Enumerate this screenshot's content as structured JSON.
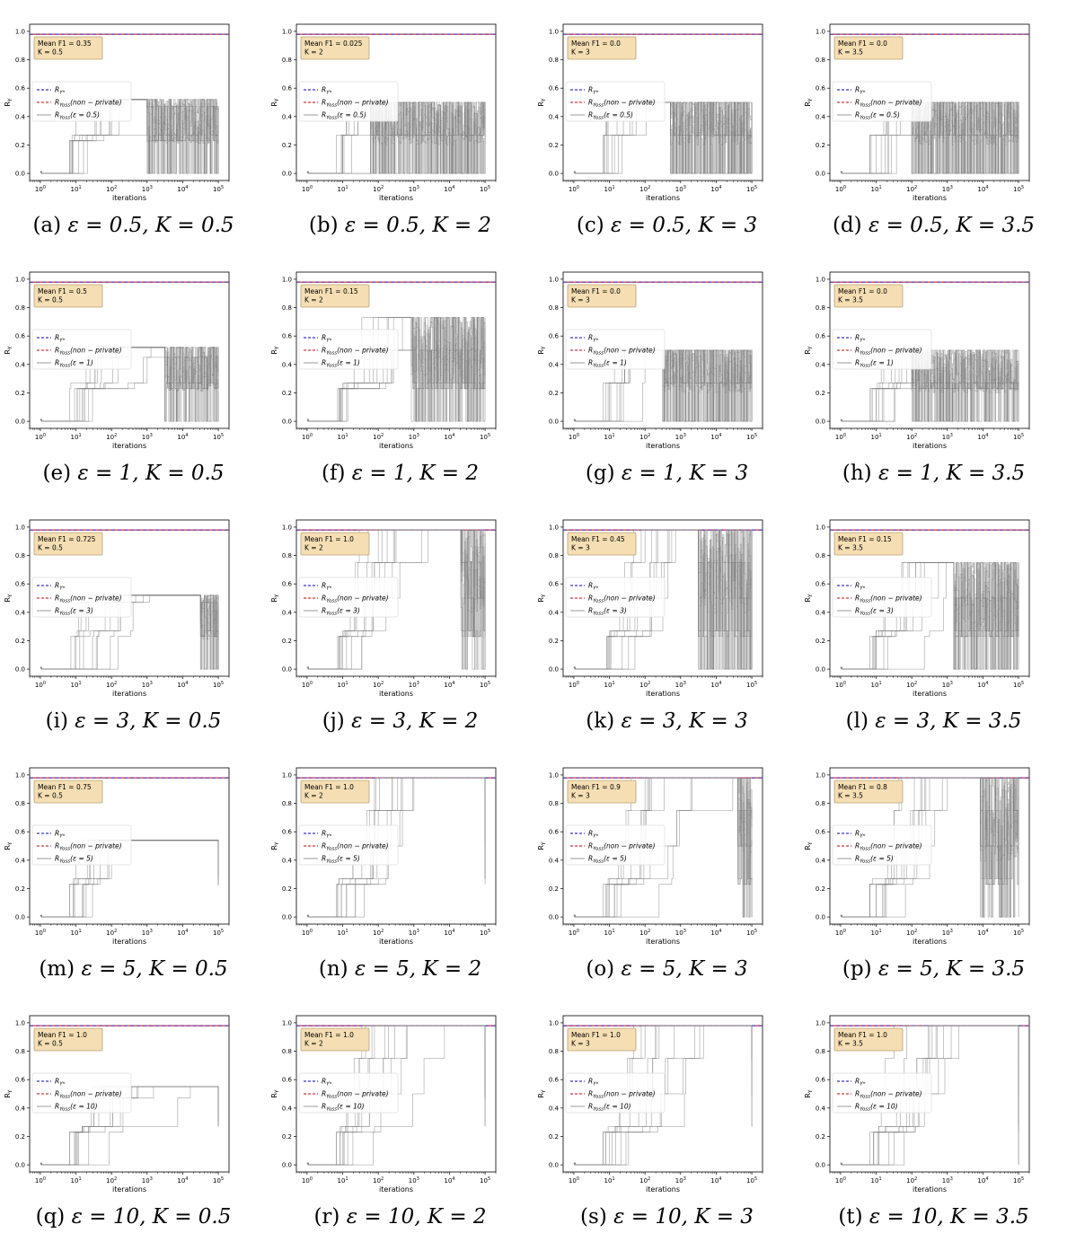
{
  "legend_labels": {
    "ystar": "R_{Y*}",
    "nonprivate": "R_{Yoss}(non − private)",
    "private_prefix": "R_{Yoss}(ε = ",
    "private_suffix": ")"
  },
  "colors": {
    "ystar": "#0000cc",
    "nonprivate": "#cc0000",
    "traces": "#808080",
    "annotation_fill": "#f5deb3",
    "annotation_edge": "#b8a276"
  },
  "chart_data": [
    {
      "letter": "a",
      "epsilon": "0.5",
      "K": "0.5",
      "mean_f1": "0.35",
      "annotation": [
        "Mean F1  = 0.35",
        "K = 0.5"
      ],
      "type": "line",
      "xlabel": "iterations",
      "ylabel": "R_Y",
      "xscale": "log",
      "xlim": [
        0.5,
        200000
      ],
      "ylim": [
        -0.05,
        1.05
      ],
      "yticks": [
        "0.0",
        "0.2",
        "0.4",
        "0.6",
        "0.8",
        "1.0"
      ],
      "xticks": [
        "10^0",
        "10^1",
        "10^2",
        "10^3",
        "10^4",
        "10^5"
      ],
      "reference_level": 0.98,
      "trace_levels": [
        0,
        0.23,
        0.27,
        0.47,
        0.52
      ],
      "noise_start": 1000,
      "trace_end": 100000
    },
    {
      "letter": "b",
      "epsilon": "0.5",
      "K": "2",
      "mean_f1": "0.025",
      "annotation": [
        "Mean F1  = 0.025",
        "K = 2"
      ],
      "type": "line",
      "xlabel": "iterations",
      "ylabel": "R_Y",
      "xscale": "log",
      "xlim": [
        0.5,
        200000
      ],
      "ylim": [
        -0.05,
        1.05
      ],
      "yticks": [
        "0.0",
        "0.2",
        "0.4",
        "0.6",
        "0.8",
        "1.0"
      ],
      "xticks": [
        "10^0",
        "10^1",
        "10^2",
        "10^3",
        "10^4",
        "10^5"
      ],
      "reference_level": 0.98,
      "trace_levels": [
        0,
        0.27,
        0.5
      ],
      "noise_start": 60,
      "trace_end": 100000
    },
    {
      "letter": "c",
      "epsilon": "0.5",
      "K": "3",
      "mean_f1": "0.0",
      "annotation": [
        "Mean F1  = 0.0",
        "K = 3"
      ],
      "type": "line",
      "xlabel": "iterations",
      "ylabel": "R_Y",
      "xscale": "log",
      "xlim": [
        0.5,
        200000
      ],
      "ylim": [
        -0.05,
        1.05
      ],
      "yticks": [
        "0.0",
        "0.2",
        "0.4",
        "0.6",
        "0.8",
        "1.0"
      ],
      "xticks": [
        "10^0",
        "10^1",
        "10^2",
        "10^3",
        "10^4",
        "10^5"
      ],
      "reference_level": 0.98,
      "trace_levels": [
        0,
        0.27,
        0.5
      ],
      "noise_start": 500,
      "trace_end": 100000
    },
    {
      "letter": "d",
      "epsilon": "0.5",
      "K": "3.5",
      "mean_f1": "0.0",
      "annotation": [
        "Mean F1  = 0.0",
        "K = 3.5"
      ],
      "type": "line",
      "xlabel": "iterations",
      "ylabel": "R_Y",
      "xscale": "log",
      "xlim": [
        0.5,
        200000
      ],
      "ylim": [
        -0.05,
        1.05
      ],
      "yticks": [
        "0.0",
        "0.2",
        "0.4",
        "0.6",
        "0.8",
        "1.0"
      ],
      "xticks": [
        "10^0",
        "10^1",
        "10^2",
        "10^3",
        "10^4",
        "10^5"
      ],
      "reference_level": 0.98,
      "trace_levels": [
        0,
        0.27,
        0.5
      ],
      "noise_start": 100,
      "trace_end": 100000
    },
    {
      "letter": "e",
      "epsilon": "1",
      "K": "0.5",
      "mean_f1": "0.5",
      "annotation": [
        "Mean F1  = 0.5",
        "K = 0.5"
      ],
      "type": "line",
      "xlabel": "iterations",
      "ylabel": "R_Y",
      "xscale": "log",
      "xlim": [
        0.5,
        200000
      ],
      "ylim": [
        -0.05,
        1.05
      ],
      "yticks": [
        "0.0",
        "0.2",
        "0.4",
        "0.6",
        "0.8",
        "1.0"
      ],
      "xticks": [
        "10^0",
        "10^1",
        "10^2",
        "10^3",
        "10^4",
        "10^5"
      ],
      "reference_level": 0.98,
      "trace_levels": [
        0,
        0.23,
        0.27,
        0.45,
        0.52
      ],
      "noise_start": 3000,
      "trace_end": 100000
    },
    {
      "letter": "f",
      "epsilon": "1",
      "K": "2",
      "mean_f1": "0.15",
      "annotation": [
        "Mean F1  = 0.15",
        "K = 2"
      ],
      "type": "line",
      "xlabel": "iterations",
      "ylabel": "R_Y",
      "xscale": "log",
      "xlim": [
        0.5,
        200000
      ],
      "ylim": [
        -0.05,
        1.05
      ],
      "yticks": [
        "0.0",
        "0.2",
        "0.4",
        "0.6",
        "0.8",
        "1.0"
      ],
      "xticks": [
        "10^0",
        "10^1",
        "10^2",
        "10^3",
        "10^4",
        "10^5"
      ],
      "reference_level": 0.98,
      "trace_levels": [
        0,
        0.23,
        0.27,
        0.5,
        0.73
      ],
      "noise_start": 800,
      "trace_end": 100000
    },
    {
      "letter": "g",
      "epsilon": "1",
      "K": "3",
      "mean_f1": "0.0",
      "annotation": [
        "Mean F1  = 0.0",
        "K = 3"
      ],
      "type": "line",
      "xlabel": "iterations",
      "ylabel": "R_Y",
      "xscale": "log",
      "xlim": [
        0.5,
        200000
      ],
      "ylim": [
        -0.05,
        1.05
      ],
      "yticks": [
        "0.0",
        "0.2",
        "0.4",
        "0.6",
        "0.8",
        "1.0"
      ],
      "xticks": [
        "10^0",
        "10^1",
        "10^2",
        "10^3",
        "10^4",
        "10^5"
      ],
      "reference_level": 0.98,
      "trace_levels": [
        0,
        0.27,
        0.5
      ],
      "noise_start": 300,
      "trace_end": 100000
    },
    {
      "letter": "h",
      "epsilon": "1",
      "K": "3.5",
      "mean_f1": "0.0",
      "annotation": [
        "Mean F1  = 0.0",
        "K = 3.5"
      ],
      "type": "line",
      "xlabel": "iterations",
      "ylabel": "R_Y",
      "xscale": "log",
      "xlim": [
        0.5,
        200000
      ],
      "ylim": [
        -0.05,
        1.05
      ],
      "yticks": [
        "0.0",
        "0.2",
        "0.4",
        "0.6",
        "0.8",
        "1.0"
      ],
      "xticks": [
        "10^0",
        "10^1",
        "10^2",
        "10^3",
        "10^4",
        "10^5"
      ],
      "reference_level": 0.98,
      "trace_levels": [
        0,
        0.23,
        0.27,
        0.5
      ],
      "noise_start": 100,
      "trace_end": 100000
    },
    {
      "letter": "i",
      "epsilon": "3",
      "K": "0.5",
      "mean_f1": "0.725",
      "annotation": [
        "Mean F1  = 0.725",
        "K = 0.5"
      ],
      "type": "line",
      "xlabel": "iterations",
      "ylabel": "R_Y",
      "xscale": "log",
      "xlim": [
        0.5,
        200000
      ],
      "ylim": [
        -0.05,
        1.05
      ],
      "yticks": [
        "0.0",
        "0.2",
        "0.4",
        "0.6",
        "0.8",
        "1.0"
      ],
      "xticks": [
        "10^0",
        "10^1",
        "10^2",
        "10^3",
        "10^4",
        "10^5"
      ],
      "reference_level": 0.98,
      "trace_levels": [
        0,
        0.23,
        0.27,
        0.47,
        0.52
      ],
      "noise_start": 30000,
      "trace_end": 100000
    },
    {
      "letter": "j",
      "epsilon": "3",
      "K": "2",
      "mean_f1": "1.0",
      "annotation": [
        "Mean F1  = 1.0",
        "K = 2"
      ],
      "type": "line",
      "xlabel": "iterations",
      "ylabel": "R_Y",
      "xscale": "log",
      "xlim": [
        0.5,
        200000
      ],
      "ylim": [
        -0.05,
        1.05
      ],
      "yticks": [
        "0.0",
        "0.2",
        "0.4",
        "0.6",
        "0.8",
        "1.0"
      ],
      "xticks": [
        "10^0",
        "10^1",
        "10^2",
        "10^3",
        "10^4",
        "10^5"
      ],
      "reference_level": 0.98,
      "trace_levels": [
        0,
        0.23,
        0.27,
        0.5,
        0.75,
        0.98
      ],
      "noise_start": 20000,
      "trace_end": 100000
    },
    {
      "letter": "k",
      "epsilon": "3",
      "K": "3",
      "mean_f1": "0.45",
      "annotation": [
        "Mean F1  = 0.45",
        "K = 3"
      ],
      "type": "line",
      "xlabel": "iterations",
      "ylabel": "R_Y",
      "xscale": "log",
      "xlim": [
        0.5,
        200000
      ],
      "ylim": [
        -0.05,
        1.05
      ],
      "yticks": [
        "0.0",
        "0.2",
        "0.4",
        "0.6",
        "0.8",
        "1.0"
      ],
      "xticks": [
        "10^0",
        "10^1",
        "10^2",
        "10^3",
        "10^4",
        "10^5"
      ],
      "reference_level": 0.98,
      "trace_levels": [
        0,
        0.23,
        0.27,
        0.5,
        0.75,
        0.98
      ],
      "noise_start": 3000,
      "trace_end": 100000
    },
    {
      "letter": "l",
      "epsilon": "3",
      "K": "3.5",
      "mean_f1": "0.15",
      "annotation": [
        "Mean F1  = 0.15",
        "K = 3.5"
      ],
      "type": "line",
      "xlabel": "iterations",
      "ylabel": "R_Y",
      "xscale": "log",
      "xlim": [
        0.5,
        200000
      ],
      "ylim": [
        -0.05,
        1.05
      ],
      "yticks": [
        "0.0",
        "0.2",
        "0.4",
        "0.6",
        "0.8",
        "1.0"
      ],
      "xticks": [
        "10^0",
        "10^1",
        "10^2",
        "10^3",
        "10^4",
        "10^5"
      ],
      "reference_level": 0.98,
      "trace_levels": [
        0,
        0.23,
        0.27,
        0.5,
        0.75
      ],
      "noise_start": 1500,
      "trace_end": 100000
    },
    {
      "letter": "m",
      "epsilon": "5",
      "K": "0.5",
      "mean_f1": "0.75",
      "annotation": [
        "Mean F1  = 0.75",
        "K = 0.5"
      ],
      "type": "line",
      "xlabel": "iterations",
      "ylabel": "R_Y",
      "xscale": "log",
      "xlim": [
        0.5,
        200000
      ],
      "ylim": [
        -0.05,
        1.05
      ],
      "yticks": [
        "0.0",
        "0.2",
        "0.4",
        "0.6",
        "0.8",
        "1.0"
      ],
      "xticks": [
        "10^0",
        "10^1",
        "10^2",
        "10^3",
        "10^4",
        "10^5"
      ],
      "reference_level": 0.98,
      "trace_levels": [
        0,
        0.23,
        0.27,
        0.47,
        0.54
      ],
      "noise_start": 100000,
      "trace_end": 100000
    },
    {
      "letter": "n",
      "epsilon": "5",
      "K": "2",
      "mean_f1": "1.0",
      "annotation": [
        "Mean F1  = 1.0",
        "K = 2"
      ],
      "type": "line",
      "xlabel": "iterations",
      "ylabel": "R_Y",
      "xscale": "log",
      "xlim": [
        0.5,
        200000
      ],
      "ylim": [
        -0.05,
        1.05
      ],
      "yticks": [
        "0.0",
        "0.2",
        "0.4",
        "0.6",
        "0.8",
        "1.0"
      ],
      "xticks": [
        "10^0",
        "10^1",
        "10^2",
        "10^3",
        "10^4",
        "10^5"
      ],
      "reference_level": 0.98,
      "trace_levels": [
        0,
        0.23,
        0.27,
        0.5,
        0.75,
        0.98
      ],
      "noise_start": 100000,
      "trace_end": 100000
    },
    {
      "letter": "o",
      "epsilon": "5",
      "K": "3",
      "mean_f1": "0.9",
      "annotation": [
        "Mean F1  = 0.9",
        "K = 3"
      ],
      "type": "line",
      "xlabel": "iterations",
      "ylabel": "R_Y",
      "xscale": "log",
      "xlim": [
        0.5,
        200000
      ],
      "ylim": [
        -0.05,
        1.05
      ],
      "yticks": [
        "0.0",
        "0.2",
        "0.4",
        "0.6",
        "0.8",
        "1.0"
      ],
      "xticks": [
        "10^0",
        "10^1",
        "10^2",
        "10^3",
        "10^4",
        "10^5"
      ],
      "reference_level": 0.98,
      "trace_levels": [
        0,
        0.23,
        0.27,
        0.5,
        0.75,
        0.98
      ],
      "noise_start": 40000,
      "trace_end": 100000
    },
    {
      "letter": "p",
      "epsilon": "5",
      "K": "3.5",
      "mean_f1": "0.8",
      "annotation": [
        "Mean F1  = 0.8",
        "K = 3.5"
      ],
      "type": "line",
      "xlabel": "iterations",
      "ylabel": "R_Y",
      "xscale": "log",
      "xlim": [
        0.5,
        200000
      ],
      "ylim": [
        -0.05,
        1.05
      ],
      "yticks": [
        "0.0",
        "0.2",
        "0.4",
        "0.6",
        "0.8",
        "1.0"
      ],
      "xticks": [
        "10^0",
        "10^1",
        "10^2",
        "10^3",
        "10^4",
        "10^5"
      ],
      "reference_level": 0.98,
      "trace_levels": [
        0,
        0.23,
        0.27,
        0.5,
        0.75,
        0.98
      ],
      "noise_start": 8000,
      "trace_end": 100000
    },
    {
      "letter": "q",
      "epsilon": "10",
      "K": "0.5",
      "mean_f1": "1.0",
      "annotation": [
        "Mean F1  = 1.0",
        "K = 0.5"
      ],
      "type": "line",
      "xlabel": "iterations",
      "ylabel": "R_Y",
      "xscale": "log",
      "xlim": [
        0.5,
        200000
      ],
      "ylim": [
        -0.05,
        1.05
      ],
      "yticks": [
        "0.0",
        "0.2",
        "0.4",
        "0.6",
        "0.8",
        "1.0"
      ],
      "xticks": [
        "10^0",
        "10^1",
        "10^2",
        "10^3",
        "10^4",
        "10^5"
      ],
      "reference_level": 0.98,
      "trace_levels": [
        0,
        0.23,
        0.27,
        0.47,
        0.55
      ],
      "noise_start": 100000,
      "trace_end": 100000
    },
    {
      "letter": "r",
      "epsilon": "10",
      "K": "2",
      "mean_f1": "1.0",
      "annotation": [
        "Mean F1  = 1.0",
        "K = 2"
      ],
      "type": "line",
      "xlabel": "iterations",
      "ylabel": "R_Y",
      "xscale": "log",
      "xlim": [
        0.5,
        200000
      ],
      "ylim": [
        -0.05,
        1.05
      ],
      "yticks": [
        "0.0",
        "0.2",
        "0.4",
        "0.6",
        "0.8",
        "1.0"
      ],
      "xticks": [
        "10^0",
        "10^1",
        "10^2",
        "10^3",
        "10^4",
        "10^5"
      ],
      "reference_level": 0.98,
      "trace_levels": [
        0,
        0.23,
        0.27,
        0.5,
        0.75,
        0.98
      ],
      "noise_start": 100000,
      "trace_end": 100000
    },
    {
      "letter": "s",
      "epsilon": "10",
      "K": "3",
      "mean_f1": "1.0",
      "annotation": [
        "Mean F1  = 1.0",
        "K = 3"
      ],
      "type": "line",
      "xlabel": "iterations",
      "ylabel": "R_Y",
      "xscale": "log",
      "xlim": [
        0.5,
        200000
      ],
      "ylim": [
        -0.05,
        1.05
      ],
      "yticks": [
        "0.0",
        "0.2",
        "0.4",
        "0.6",
        "0.8",
        "1.0"
      ],
      "xticks": [
        "10^0",
        "10^1",
        "10^2",
        "10^3",
        "10^4",
        "10^5"
      ],
      "reference_level": 0.98,
      "trace_levels": [
        0,
        0.23,
        0.27,
        0.5,
        0.75,
        0.98
      ],
      "noise_start": 100000,
      "trace_end": 100000
    },
    {
      "letter": "t",
      "epsilon": "10",
      "K": "3.5",
      "mean_f1": "1.0",
      "annotation": [
        "Mean F1  = 1.0",
        "K = 3.5"
      ],
      "type": "line",
      "xlabel": "iterations",
      "ylabel": "R_Y",
      "xscale": "log",
      "xlim": [
        0.5,
        200000
      ],
      "ylim": [
        -0.05,
        1.05
      ],
      "yticks": [
        "0.0",
        "0.2",
        "0.4",
        "0.6",
        "0.8",
        "1.0"
      ],
      "xticks": [
        "10^0",
        "10^1",
        "10^2",
        "10^3",
        "10^4",
        "10^5"
      ],
      "reference_level": 0.98,
      "trace_levels": [
        0,
        0.23,
        0.27,
        0.5,
        0.75,
        0.98
      ],
      "noise_start": 100000,
      "trace_end": 100000
    }
  ]
}
